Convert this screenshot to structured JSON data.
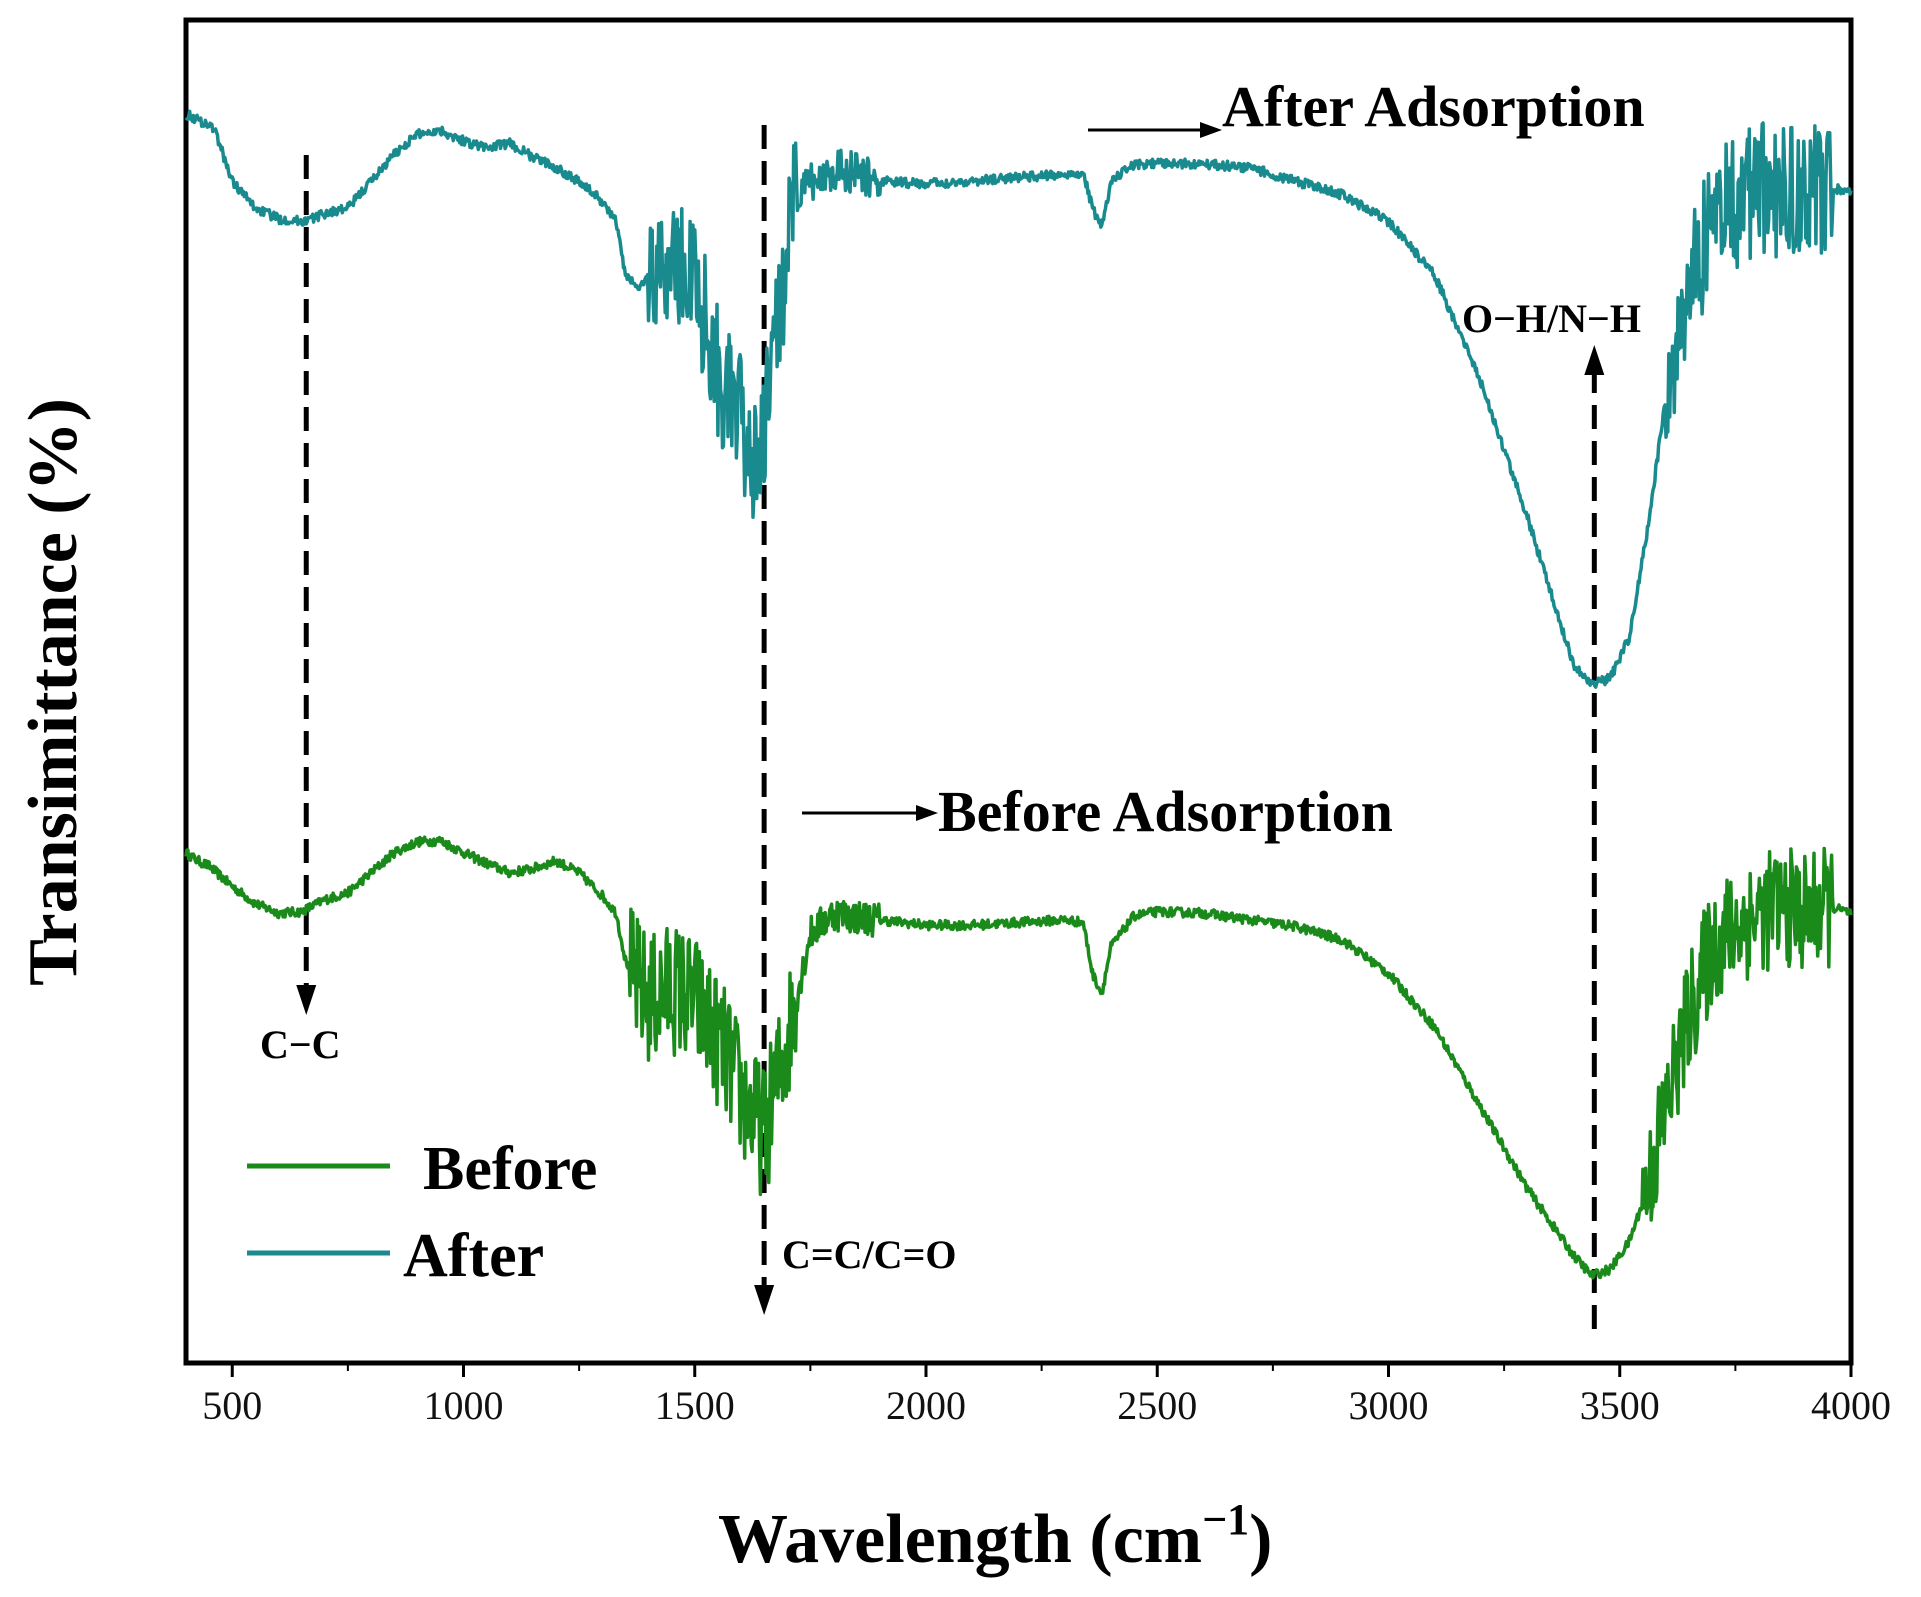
{
  "chart_data": {
    "type": "line",
    "xlabel": "Wavelength (cm",
    "xlabel_sup": "−1",
    "xlabel_close": ")",
    "ylabel": "Transimittance (%)",
    "xlim": [
      400,
      4000
    ],
    "ylim": [
      0,
      100
    ],
    "y_tick_labels": "none",
    "xticks": [
      500,
      1000,
      1500,
      2000,
      2500,
      3000,
      3500,
      4000
    ],
    "xtick_labels": [
      "500",
      "1000",
      "1500",
      "2000",
      "2500",
      "3000",
      "3500",
      "4000"
    ],
    "legend_position": "bottom-left",
    "series": [
      {
        "name": "Before",
        "color": "#1a8a1a",
        "points": [
          [
            400,
            38
          ],
          [
            420,
            37.5
          ],
          [
            450,
            37
          ],
          [
            500,
            35.5
          ],
          [
            550,
            34.2
          ],
          [
            600,
            33.5
          ],
          [
            650,
            33.6
          ],
          [
            700,
            34.5
          ],
          [
            750,
            35
          ],
          [
            800,
            36.5
          ],
          [
            850,
            38
          ],
          [
            900,
            38.8
          ],
          [
            950,
            38.9
          ],
          [
            1000,
            38
          ],
          [
            1050,
            37.2
          ],
          [
            1100,
            36.5
          ],
          [
            1150,
            36.8
          ],
          [
            1200,
            37.4
          ],
          [
            1250,
            36.5
          ],
          [
            1300,
            34.8
          ],
          [
            1330,
            33.5
          ],
          [
            1350,
            30
          ],
          [
            1380,
            28
          ],
          [
            1400,
            27
          ],
          [
            1450,
            28
          ],
          [
            1500,
            27
          ],
          [
            1550,
            24
          ],
          [
            1580,
            22
          ],
          [
            1600,
            20
          ],
          [
            1650,
            17
          ],
          [
            1700,
            24
          ],
          [
            1750,
            32
          ],
          [
            1800,
            33.5
          ],
          [
            1850,
            33.2
          ],
          [
            1900,
            33
          ],
          [
            1950,
            32.8
          ],
          [
            2000,
            32.6
          ],
          [
            2100,
            32.6
          ],
          [
            2200,
            32.8
          ],
          [
            2300,
            33
          ],
          [
            2340,
            32.8
          ],
          [
            2360,
            29
          ],
          [
            2380,
            27.5
          ],
          [
            2400,
            31
          ],
          [
            2450,
            33.3
          ],
          [
            2500,
            33.6
          ],
          [
            2600,
            33.5
          ],
          [
            2700,
            33
          ],
          [
            2800,
            32.5
          ],
          [
            2900,
            31.5
          ],
          [
            3000,
            29
          ],
          [
            3100,
            25
          ],
          [
            3200,
            19
          ],
          [
            3300,
            13
          ],
          [
            3400,
            8
          ],
          [
            3440,
            6.5
          ],
          [
            3480,
            7
          ],
          [
            3520,
            9
          ],
          [
            3560,
            13
          ],
          [
            3600,
            19
          ],
          [
            3650,
            26
          ],
          [
            3700,
            31
          ],
          [
            3750,
            32.5
          ],
          [
            3800,
            33.5
          ],
          [
            3850,
            34
          ],
          [
            3900,
            33.5
          ],
          [
            3950,
            34
          ],
          [
            4000,
            33.5
          ]
        ],
        "noise_ranges": [
          [
            1360,
            1720,
            5
          ],
          [
            1720,
            1900,
            1.3
          ],
          [
            3550,
            3960,
            4.5
          ]
        ]
      },
      {
        "name": "After",
        "color": "#198a8e",
        "points": [
          [
            400,
            93
          ],
          [
            430,
            92.5
          ],
          [
            460,
            92
          ],
          [
            500,
            88
          ],
          [
            550,
            86
          ],
          [
            600,
            85.2
          ],
          [
            650,
            85
          ],
          [
            680,
            85.3
          ],
          [
            700,
            85.6
          ],
          [
            750,
            86
          ],
          [
            800,
            88
          ],
          [
            850,
            90
          ],
          [
            900,
            91.5
          ],
          [
            950,
            91.8
          ],
          [
            1000,
            91
          ],
          [
            1050,
            90.5
          ],
          [
            1100,
            90.8
          ],
          [
            1150,
            89.8
          ],
          [
            1200,
            89
          ],
          [
            1250,
            88
          ],
          [
            1300,
            86.5
          ],
          [
            1330,
            85
          ],
          [
            1350,
            81
          ],
          [
            1380,
            80
          ],
          [
            1400,
            81
          ],
          [
            1450,
            82
          ],
          [
            1500,
            81
          ],
          [
            1550,
            74
          ],
          [
            1580,
            71
          ],
          [
            1600,
            70
          ],
          [
            1640,
            66
          ],
          [
            1680,
            78
          ],
          [
            1720,
            87
          ],
          [
            1800,
            89
          ],
          [
            1850,
            88.5
          ],
          [
            1900,
            88
          ],
          [
            2000,
            87.8
          ],
          [
            2100,
            88
          ],
          [
            2200,
            88.3
          ],
          [
            2300,
            88.5
          ],
          [
            2340,
            88.6
          ],
          [
            2360,
            86
          ],
          [
            2380,
            84.5
          ],
          [
            2400,
            88
          ],
          [
            2450,
            89.2
          ],
          [
            2500,
            89.3
          ],
          [
            2600,
            89.3
          ],
          [
            2700,
            89
          ],
          [
            2800,
            88
          ],
          [
            2900,
            87
          ],
          [
            3000,
            85
          ],
          [
            3100,
            81
          ],
          [
            3200,
            73
          ],
          [
            3300,
            63
          ],
          [
            3400,
            52
          ],
          [
            3440,
            50.5
          ],
          [
            3480,
            51
          ],
          [
            3520,
            54
          ],
          [
            3560,
            62
          ],
          [
            3600,
            72
          ],
          [
            3650,
            80
          ],
          [
            3700,
            85
          ],
          [
            3750,
            86.5
          ],
          [
            3800,
            87.5
          ],
          [
            3850,
            87
          ],
          [
            3900,
            87
          ],
          [
            3950,
            87.5
          ],
          [
            4000,
            87.3
          ]
        ],
        "noise_ranges": [
          [
            1400,
            1720,
            5
          ],
          [
            1720,
            1900,
            1.6
          ],
          [
            3600,
            3960,
            5
          ]
        ]
      }
    ],
    "annotations": [
      {
        "text": "After Adsorption"
      },
      {
        "text": "Before Adsorption"
      },
      {
        "text": "C−C"
      },
      {
        "text": "C=C/C=O"
      },
      {
        "text": "O−H/N−H"
      }
    ],
    "reference_lines": [
      {
        "x": 660,
        "label": "C−C"
      },
      {
        "x": 1650,
        "label": "C=C/C=O"
      },
      {
        "x": 3445,
        "label": "O−H/N−H"
      }
    ]
  }
}
